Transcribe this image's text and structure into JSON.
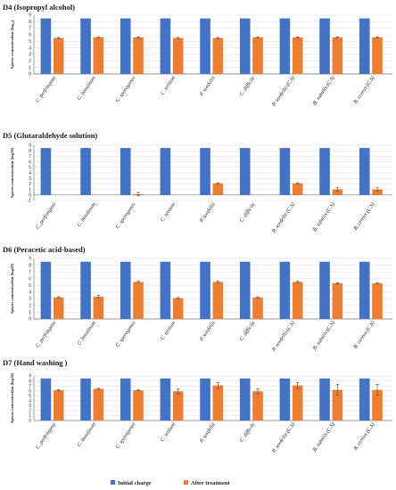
{
  "colors": {
    "initial": "#4472C4",
    "after": "#ED7D31",
    "error": "#595959"
  },
  "legend": {
    "initial": "Initial charge",
    "after": "After treatment",
    "position": "bottom-center"
  },
  "chart_data": [
    {
      "type": "bar",
      "title": "D4 (Isopropyl alcohol)",
      "ylabel": "Spores concentration (log₁₀)",
      "ylim": [
        0,
        9
      ],
      "yticks": [
        0,
        1,
        2,
        3,
        4,
        5,
        6,
        7,
        8,
        9
      ],
      "categories": [
        "C. perfringens",
        "C. botulinum",
        "C. sporogenes",
        "C. tertium",
        "P. sordellii",
        "C. difficile",
        "P. sordellii (C.S)",
        "B. subtilis (C.S)",
        "B. cereus (C.S)"
      ],
      "series": [
        {
          "name": "Initial charge",
          "values": [
            8.5,
            8.5,
            8.5,
            8.5,
            8.5,
            8.5,
            8.5,
            8.5,
            8.5
          ],
          "errors": [
            0,
            0,
            0,
            0,
            0,
            0,
            0,
            0,
            0
          ]
        },
        {
          "name": "After treatment",
          "values": [
            5.5,
            5.6,
            5.6,
            5.5,
            5.5,
            5.6,
            5.6,
            5.6,
            5.6
          ],
          "errors": [
            0.1,
            0.1,
            0.1,
            0.1,
            0.1,
            0.1,
            0.1,
            0.1,
            0.1
          ]
        }
      ]
    },
    {
      "type": "bar",
      "title": "D5 (Glutaraldehyde solution)",
      "ylabel": "Spores concentration (log10)",
      "ylim": [
        -1,
        9
      ],
      "yticks": [
        -1,
        0,
        1,
        2,
        3,
        4,
        5,
        6,
        7,
        8,
        9
      ],
      "categories": [
        "C. perfringens",
        "C. botulinum",
        "C. sporogenes",
        "C. tertium",
        "P. sordellii",
        "C. difficile",
        "P. sordellii (C.S)",
        "B. subtilis (C.S)",
        "B. cereus (C.S)"
      ],
      "series": [
        {
          "name": "Initial charge",
          "values": [
            8.5,
            8.5,
            8.5,
            8.5,
            8.5,
            8.5,
            8.5,
            8.5,
            8.5
          ],
          "errors": [
            0,
            0,
            0,
            0,
            0,
            0,
            0,
            0,
            0
          ]
        },
        {
          "name": "After treatment",
          "values": [
            0,
            0,
            0.15,
            0,
            2.1,
            0,
            2.1,
            1.0,
            1.0
          ],
          "errors": [
            0,
            0,
            0.3,
            0,
            0.1,
            0,
            0.1,
            0.3,
            0.3
          ]
        }
      ]
    },
    {
      "type": "bar",
      "title": "D6 (Peracetic acid-based)",
      "ylabel": "Spores concentration (log10)",
      "ylim": [
        0,
        9
      ],
      "yticks": [
        0,
        1,
        2,
        3,
        4,
        5,
        6,
        7,
        8,
        9
      ],
      "categories": [
        "C. perfringens",
        "C. botulinum",
        "C. sporogenes",
        "C. tertium",
        "P. sordellii",
        "C. difficile",
        "P. sordellii (C.S)",
        "B. subtilis (C.S)",
        "B. cereus (C.S)"
      ],
      "series": [
        {
          "name": "Initial charge",
          "values": [
            8.5,
            8.5,
            8.5,
            8.5,
            8.5,
            8.5,
            8.5,
            8.5,
            8.5
          ],
          "errors": [
            0,
            0,
            0,
            0,
            0,
            0,
            0,
            0,
            0
          ]
        },
        {
          "name": "After treatment",
          "values": [
            3.2,
            3.3,
            5.5,
            3.1,
            5.5,
            3.2,
            5.5,
            5.3,
            5.3
          ],
          "errors": [
            0.1,
            0.2,
            0.1,
            0.1,
            0.1,
            0.1,
            0.1,
            0.1,
            0.1
          ]
        }
      ]
    },
    {
      "type": "bar",
      "title": "D7 (Hand washing )",
      "ylabel": "Spores concentration (log10)",
      "ylim": [
        0,
        9
      ],
      "yticks": [
        0,
        1,
        2,
        3,
        4,
        5,
        6,
        7,
        8,
        9
      ],
      "categories": [
        "C. perfringens",
        "C. botulinum",
        "C. sporogenes",
        "C. tertium",
        "P. sordellii",
        "C. difficile",
        "P. sordellii (C.S)",
        "B. subtilis (C.S)",
        "B. cereus (C.S)"
      ],
      "series": [
        {
          "name": "Initial charge",
          "values": [
            8.5,
            8.5,
            8.5,
            8.5,
            8.5,
            8.5,
            8.5,
            8.5,
            8.5
          ],
          "errors": [
            0,
            0,
            0,
            0,
            0,
            0,
            0,
            0,
            0
          ]
        },
        {
          "name": "After treatment",
          "values": [
            6.1,
            6.4,
            6.1,
            5.9,
            7.1,
            5.9,
            7.1,
            6.2,
            6.2
          ],
          "errors": [
            0.1,
            0.1,
            0.1,
            0.5,
            0.6,
            0.5,
            0.6,
            1.1,
            1.1
          ]
        }
      ]
    }
  ]
}
